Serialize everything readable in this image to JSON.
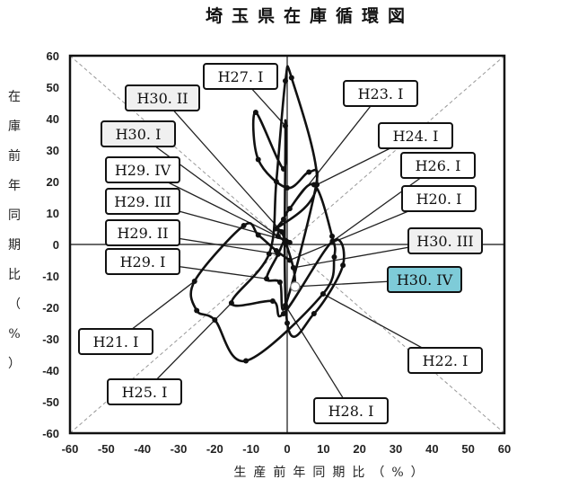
{
  "chart_data": {
    "type": "line",
    "title": "埼玉県在庫循環図",
    "xlabel": "生産前年同期比（%）",
    "ylabel": "在庫前年同期比（%）",
    "xlim": [
      -60,
      60
    ],
    "ylim": [
      -60,
      60
    ],
    "xticks": [
      "-60",
      "-50",
      "-40",
      "-30",
      "-20",
      "-10",
      "0",
      "10",
      "20",
      "30",
      "40",
      "50",
      "60"
    ],
    "yticks": [
      "60",
      "50",
      "40",
      "30",
      "20",
      "10",
      "0",
      "-10",
      "-20",
      "-30",
      "-40",
      "-50",
      "-60"
    ],
    "grid": false,
    "diagonals": true,
    "highlight_color": "#7ecbd8",
    "recent_color": "#f0f0f0",
    "points": [
      {
        "x": 0.7,
        "y": -5,
        "label": "H20. I"
      },
      {
        "x": -3,
        "y": -2
      },
      {
        "x": -8,
        "y": 3
      },
      {
        "x": -12,
        "y": 6
      },
      {
        "x": -25.6,
        "y": -11.7,
        "label": "H21. I"
      },
      {
        "x": -25,
        "y": -21
      },
      {
        "x": -20,
        "y": -24
      },
      {
        "x": -11.4,
        "y": -37
      },
      {
        "x": 9.9,
        "y": -15.7,
        "label": "H22. I"
      },
      {
        "x": 13,
        "y": -4
      },
      {
        "x": 12.4,
        "y": 2.6
      },
      {
        "x": 7.4,
        "y": 19
      },
      {
        "x": 0.7,
        "y": 11.4,
        "label": "H23. I"
      },
      {
        "x": -1,
        "y": 8
      },
      {
        "x": -3,
        "y": 5
      },
      {
        "x": 8.2,
        "y": 19,
        "label": "H24. I"
      },
      {
        "x": 1.2,
        "y": 53
      },
      {
        "x": -0.5,
        "y": 52
      },
      {
        "x": -3,
        "y": 20
      },
      {
        "x": -5,
        "y": -3
      },
      {
        "x": -15.4,
        "y": -18.6,
        "label": "H25. I"
      },
      {
        "x": -4,
        "y": -18
      },
      {
        "x": -1,
        "y": -22
      },
      {
        "x": 12.5,
        "y": 1,
        "label": "H26. I"
      },
      {
        "x": 15.4,
        "y": -6.6
      },
      {
        "x": 7.4,
        "y": -22
      },
      {
        "x": 0,
        "y": -25
      },
      {
        "x": -0.5,
        "y": 37.7,
        "label": "H27. I"
      },
      {
        "x": -1,
        "y": 24
      },
      {
        "x": -8.7,
        "y": 42
      },
      {
        "x": -8,
        "y": 27
      },
      {
        "x": 0,
        "y": 18
      },
      {
        "x": 6,
        "y": 23
      },
      {
        "x": 8,
        "y": 19
      },
      {
        "x": -0.5,
        "y": -19.4,
        "label": "H28. I"
      },
      {
        "x": -2,
        "y": -12
      },
      {
        "x": -5.7,
        "y": -10.9,
        "label": "H29. I"
      },
      {
        "x": -2.5,
        "y": -3.1,
        "label": "H29. II"
      },
      {
        "x": -0.7,
        "y": 1.4,
        "label": "H29. III"
      },
      {
        "x": 0.7,
        "y": 0.6,
        "label": "H29. IV"
      },
      {
        "x": -2.5,
        "y": 2.6,
        "label": "H30. I"
      },
      {
        "x": -1.5,
        "y": 4,
        "label": "H30. II"
      },
      {
        "x": 1.7,
        "y": -7.4,
        "label": "H30. III"
      },
      {
        "x": 2.2,
        "y": -13.4,
        "label": "H30. IV"
      }
    ]
  }
}
